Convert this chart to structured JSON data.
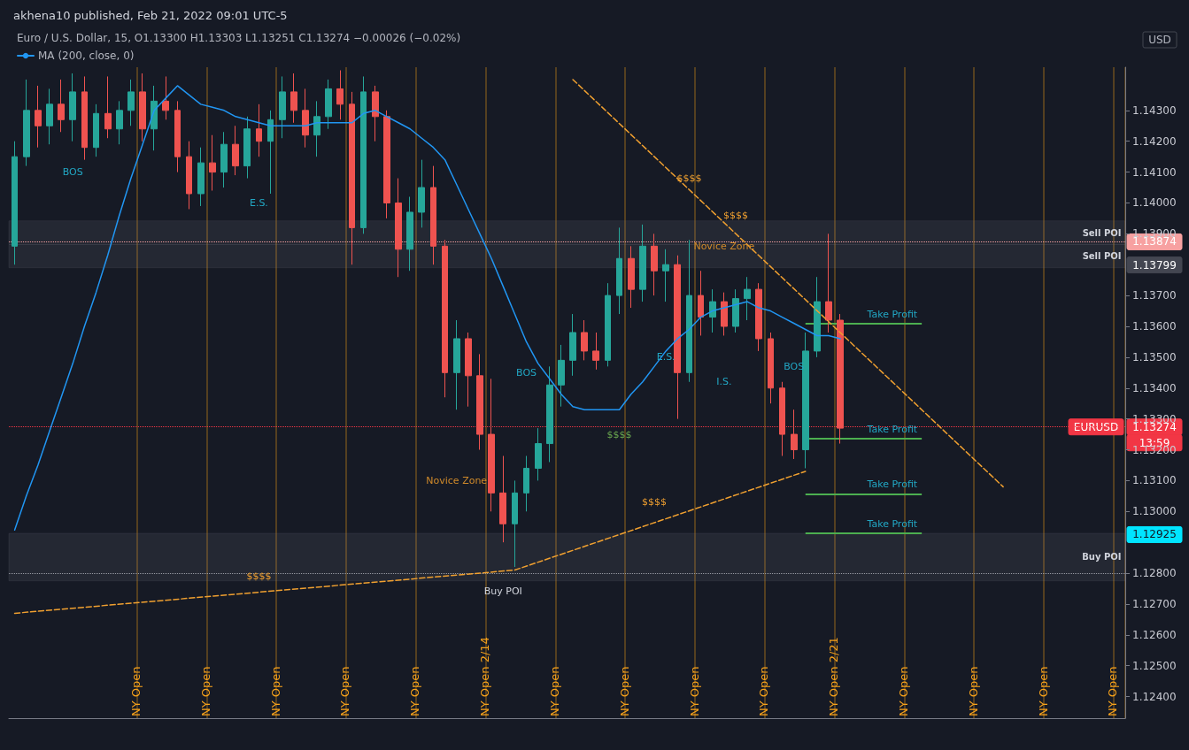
{
  "chart_data": {
    "type": "candlestick",
    "title": "akhena10 published, Feb 21, 2022 09:01 UTC-5",
    "subtitle": "Euro / U.S. Dollar, 15, O1.13300 H1.13303 L1.13251 C1.13274 −0.00026 (−0.02%)",
    "categories": [
      null,
      null,
      null,
      null,
      null,
      null,
      null,
      null,
      null,
      null,
      null,
      null,
      null,
      null,
      null,
      null,
      null,
      null,
      null,
      null,
      null,
      null,
      null,
      null,
      null,
      null,
      null,
      null,
      null,
      null,
      null,
      null,
      null,
      null,
      null,
      null,
      null,
      null,
      null,
      null,
      null,
      null,
      null,
      null,
      null,
      null,
      null,
      null,
      null,
      null,
      null,
      null,
      null,
      null,
      null,
      null,
      null,
      null,
      null,
      null,
      null,
      null,
      null,
      null,
      null,
      null,
      null,
      null,
      null,
      null,
      null,
      null,
      null,
      null,
      null,
      null,
      null,
      null,
      null,
      null,
      null,
      null,
      null,
      null,
      null,
      null,
      null,
      null,
      null,
      null,
      null,
      null,
      null,
      null,
      null,
      null
    ],
    "ohlc": [
      [
        1.1386,
        1.142,
        1.138,
        1.1415
      ],
      [
        1.1415,
        1.144,
        1.1412,
        1.143
      ],
      [
        1.143,
        1.1438,
        1.1418,
        1.1425
      ],
      [
        1.1425,
        1.1437,
        1.1419,
        1.1432
      ],
      [
        1.1432,
        1.144,
        1.1423,
        1.1427
      ],
      [
        1.1427,
        1.1442,
        1.142,
        1.1436
      ],
      [
        1.1436,
        1.1441,
        1.1414,
        1.1418
      ],
      [
        1.1418,
        1.1432,
        1.1415,
        1.1429
      ],
      [
        1.1429,
        1.1441,
        1.1421,
        1.1424
      ],
      [
        1.1424,
        1.1433,
        1.1419,
        1.143
      ],
      [
        1.143,
        1.144,
        1.1425,
        1.1436
      ],
      [
        1.1436,
        1.1442,
        1.142,
        1.1424
      ],
      [
        1.1424,
        1.1438,
        1.1417,
        1.1433
      ],
      [
        1.1433,
        1.1441,
        1.1427,
        1.143
      ],
      [
        1.143,
        1.1433,
        1.141,
        1.1415
      ],
      [
        1.1415,
        1.142,
        1.1398,
        1.1403
      ],
      [
        1.1403,
        1.1418,
        1.1399,
        1.1413
      ],
      [
        1.1413,
        1.1422,
        1.1404,
        1.141
      ],
      [
        1.141,
        1.1423,
        1.1405,
        1.1419
      ],
      [
        1.1419,
        1.1425,
        1.1409,
        1.1412
      ],
      [
        1.1412,
        1.1428,
        1.1408,
        1.1424
      ],
      [
        1.1424,
        1.1432,
        1.1415,
        1.142
      ],
      [
        1.142,
        1.143,
        1.1403,
        1.1427
      ],
      [
        1.1427,
        1.1441,
        1.1421,
        1.1436
      ],
      [
        1.1436,
        1.1442,
        1.1426,
        1.143
      ],
      [
        1.143,
        1.1437,
        1.1418,
        1.1422
      ],
      [
        1.1422,
        1.1433,
        1.1415,
        1.1428
      ],
      [
        1.1428,
        1.144,
        1.1424,
        1.1437
      ],
      [
        1.1437,
        1.1443,
        1.1427,
        1.1432
      ],
      [
        1.1432,
        1.1436,
        1.138,
        1.1392
      ],
      [
        1.1392,
        1.1441,
        1.139,
        1.1436
      ],
      [
        1.1436,
        1.1438,
        1.142,
        1.1428
      ],
      [
        1.1428,
        1.143,
        1.1395,
        1.14
      ],
      [
        1.14,
        1.1408,
        1.1376,
        1.1385
      ],
      [
        1.1385,
        1.1402,
        1.1378,
        1.1397
      ],
      [
        1.1397,
        1.1414,
        1.1392,
        1.1405
      ],
      [
        1.1405,
        1.1412,
        1.138,
        1.1386
      ],
      [
        1.1386,
        1.1388,
        1.1337,
        1.1345
      ],
      [
        1.1345,
        1.1362,
        1.1333,
        1.1356
      ],
      [
        1.1356,
        1.1358,
        1.1334,
        1.1344
      ],
      [
        1.1344,
        1.1351,
        1.132,
        1.1325
      ],
      [
        1.1325,
        1.1343,
        1.13,
        1.1306
      ],
      [
        1.1306,
        1.1318,
        1.129,
        1.1296
      ],
      [
        1.1296,
        1.131,
        1.1282,
        1.1306
      ],
      [
        1.1306,
        1.1318,
        1.13,
        1.1314
      ],
      [
        1.1314,
        1.1327,
        1.131,
        1.1322
      ],
      [
        1.1322,
        1.1347,
        1.1316,
        1.1341
      ],
      [
        1.1341,
        1.1354,
        1.1334,
        1.1349
      ],
      [
        1.1349,
        1.1364,
        1.1344,
        1.1358
      ],
      [
        1.1358,
        1.1362,
        1.1349,
        1.1352
      ],
      [
        1.1352,
        1.1358,
        1.1346,
        1.1349
      ],
      [
        1.1349,
        1.1374,
        1.1347,
        1.137
      ],
      [
        1.137,
        1.1392,
        1.1364,
        1.1382
      ],
      [
        1.1382,
        1.1386,
        1.1366,
        1.1372
      ],
      [
        1.1372,
        1.1393,
        1.1368,
        1.1386
      ],
      [
        1.1386,
        1.139,
        1.137,
        1.1378
      ],
      [
        1.1378,
        1.1385,
        1.1368,
        1.138
      ],
      [
        1.138,
        1.1383,
        1.133,
        1.1345
      ],
      [
        1.1345,
        1.1388,
        1.1342,
        1.137
      ],
      [
        1.137,
        1.1378,
        1.1357,
        1.1363
      ],
      [
        1.1363,
        1.1372,
        1.1358,
        1.1368
      ],
      [
        1.1368,
        1.1371,
        1.1357,
        1.136
      ],
      [
        1.136,
        1.1372,
        1.1358,
        1.1369
      ],
      [
        1.1369,
        1.1376,
        1.1362,
        1.1372
      ],
      [
        1.1372,
        1.1374,
        1.1352,
        1.1356
      ],
      [
        1.1356,
        1.1358,
        1.1335,
        1.134
      ],
      [
        1.134,
        1.1342,
        1.1318,
        1.1325
      ],
      [
        1.1325,
        1.1333,
        1.1317,
        1.132
      ],
      [
        1.132,
        1.1358,
        1.1314,
        1.1352
      ],
      [
        1.1352,
        1.1376,
        1.135,
        1.1368
      ],
      [
        1.1368,
        1.139,
        1.1358,
        1.1362
      ],
      [
        1.1362,
        1.1364,
        1.1322,
        1.1327
      ],
      null,
      null,
      null,
      null,
      null,
      null,
      null,
      null,
      null,
      null,
      null,
      null,
      null,
      null,
      null,
      null,
      null,
      null,
      null,
      null,
      null,
      null,
      null,
      null
    ],
    "series": [
      {
        "type": "line",
        "name": "MA (200, close, 0)",
        "color": "#2196f3",
        "values": [
          1.1294,
          1.1305,
          1.1315,
          1.1326,
          1.1337,
          1.1348,
          1.136,
          1.1371,
          1.1383,
          1.1396,
          1.1408,
          1.1419,
          1.143,
          1.1434,
          1.1438,
          1.1435,
          1.1432,
          1.1431,
          1.143,
          1.1428,
          1.1427,
          1.1426,
          1.1425,
          1.1425,
          1.1425,
          1.1425,
          1.1426,
          1.1426,
          1.1426,
          1.1426,
          1.1429,
          1.143,
          1.1428,
          1.1426,
          1.1424,
          1.1421,
          1.1418,
          1.1414,
          1.1406,
          1.1398,
          1.139,
          1.1382,
          1.1373,
          1.1364,
          1.1355,
          1.1348,
          1.1343,
          1.1338,
          1.1334,
          1.1333,
          1.1333,
          1.1333,
          1.1333,
          1.1338,
          1.1342,
          1.1347,
          1.1352,
          1.1356,
          1.1359,
          1.1363,
          1.1365,
          1.1366,
          1.1367,
          1.1368,
          1.1366,
          1.1365,
          1.1363,
          1.1361,
          1.1359,
          1.1357,
          1.1357,
          1.1356,
          null,
          null,
          null,
          null,
          null,
          null,
          null,
          null,
          null,
          null,
          null,
          null,
          null,
          null,
          null,
          null,
          null,
          null,
          null,
          null,
          null,
          null,
          null,
          null
        ]
      },
      {
        "type": "line",
        "color": "#f0a030",
        "line_style": "dashed",
        "values": [
          1.1267,
          null,
          null,
          null,
          null,
          null,
          null,
          null,
          null,
          null,
          null,
          null,
          null,
          null,
          null,
          null,
          null,
          null,
          null,
          null,
          null,
          null,
          null,
          null,
          null,
          null,
          null,
          null,
          null,
          null,
          null,
          null,
          null,
          null,
          null,
          null,
          null,
          null,
          null,
          null,
          null,
          null,
          null,
          1.1281,
          null,
          null,
          null,
          null,
          null,
          null,
          null,
          null,
          null,
          null,
          null,
          null,
          null,
          null,
          null,
          null,
          null,
          null,
          null,
          null,
          null,
          null,
          null,
          null,
          1.1313,
          null,
          null,
          null,
          null,
          null,
          null,
          null,
          null,
          null,
          null,
          null,
          null,
          null,
          null,
          null,
          null,
          null,
          null,
          null,
          null,
          null,
          null,
          null,
          null,
          null,
          null,
          null
        ]
      },
      {
        "type": "line",
        "color": "#f0a030",
        "line_style": "dashed",
        "values": [
          null,
          null,
          null,
          null,
          null,
          null,
          null,
          null,
          null,
          null,
          null,
          null,
          null,
          null,
          null,
          null,
          null,
          null,
          null,
          null,
          null,
          null,
          null,
          null,
          null,
          null,
          null,
          null,
          null,
          null,
          null,
          null,
          null,
          null,
          null,
          null,
          null,
          null,
          null,
          null,
          null,
          null,
          null,
          null,
          null,
          null,
          null,
          null,
          1.144,
          null,
          null,
          null,
          null,
          null,
          null,
          null,
          null,
          null,
          null,
          null,
          null,
          null,
          null,
          null,
          null,
          null,
          null,
          null,
          null,
          null,
          null,
          null,
          null,
          null,
          null,
          null,
          null,
          null,
          null,
          null,
          null,
          null,
          null,
          null,
          null,
          1.1308,
          null,
          null,
          null,
          null,
          null,
          null,
          null,
          null,
          null,
          null
        ]
      }
    ],
    "ylim": [
      1.1233,
      1.1444
    ],
    "yticks": [
      {
        "value": 1.124,
        "label": "1.12400"
      },
      {
        "value": 1.125,
        "label": "1.12500"
      },
      {
        "value": 1.126,
        "label": "1.12600"
      },
      {
        "value": 1.127,
        "label": "1.12700"
      },
      {
        "value": 1.128,
        "label": "1.12800"
      },
      {
        "value": 1.13,
        "label": "1.13000"
      },
      {
        "value": 1.131,
        "label": "1.13100"
      },
      {
        "value": 1.132,
        "label": "1.13200"
      },
      {
        "value": 1.133,
        "label": "1.13300"
      },
      {
        "value": 1.134,
        "label": "1.13400"
      },
      {
        "value": 1.135,
        "label": "1.13500"
      },
      {
        "value": 1.136,
        "label": "1.13600"
      },
      {
        "value": 1.137,
        "label": "1.13700"
      },
      {
        "value": 1.139,
        "label": "1.13900"
      },
      {
        "value": 1.14,
        "label": "1.14000"
      },
      {
        "value": 1.141,
        "label": "1.14100"
      },
      {
        "value": 1.142,
        "label": "1.14200"
      },
      {
        "value": 1.143,
        "label": "1.14300"
      }
    ],
    "ref_lines": [
      {
        "axis": "y",
        "value": 1.13874,
        "label": "1.13874",
        "color": "#f7a1a1",
        "line_style": "dotted"
      },
      {
        "axis": "y",
        "value": 1.13274,
        "label": "1.13274",
        "color": "#f23645",
        "line_style": "dotted"
      },
      {
        "axis": "y",
        "value": 1.128,
        "label": null,
        "color": "#9598a1",
        "line_style": "dotted"
      },
      {
        "axis": "y",
        "value": 1.1361,
        "label": "Take Profit",
        "color": "#4caf50"
      },
      {
        "axis": "y",
        "value": 1.13237,
        "label": "Take Profit",
        "color": "#4caf50"
      },
      {
        "axis": "y",
        "value": 1.13057,
        "label": "Take Profit",
        "color": "#4caf50"
      },
      {
        "axis": "y",
        "value": 1.12929,
        "label": "Take Profit",
        "color": "#4caf50"
      }
    ],
    "bands": [
      {
        "axis": "y",
        "from": 1.13865,
        "to": 1.13942,
        "label": "Sell POI",
        "color": "#787b86"
      },
      {
        "axis": "y",
        "from": 1.1379,
        "to": 1.13865,
        "label": "Sell POI",
        "color": "#787b86"
      },
      {
        "axis": "y",
        "from": 1.12775,
        "to": 1.12929,
        "label": "Buy POI",
        "color": "#787b86"
      }
    ],
    "annotations": [
      "NY Open",
      "NY Open",
      "NY Open",
      "NY Open",
      "NY Open",
      "NY Open 2/14",
      "NY Open",
      "NY Open",
      "NY Open",
      "NY Open",
      "NY Open 2/21",
      "NY Open",
      "NY Open",
      "NY Open",
      "NY Open",
      "BOS",
      "E.S.",
      "Novice Zone",
      "BOS",
      "E.S.",
      "Novice Zone",
      "$$$$",
      "$$$$",
      "I.S.",
      "BOS",
      "$$$$",
      "$$$$",
      "$$$$",
      "Buy POI",
      "1.13799",
      "EURUSD",
      "1.12925",
      "13:59",
      "USD"
    ],
    "legend": "top left",
    "grid": "x"
  }
}
